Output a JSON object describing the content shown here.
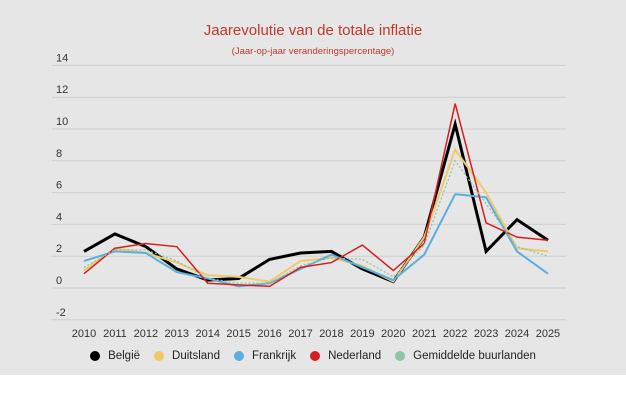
{
  "chart_data": {
    "type": "line",
    "title": "Jaarevolutie van de totale inflatie",
    "subtitle": "(Jaar-op-jaar veranderingspercentage)",
    "xlabel": "",
    "ylabel": "",
    "x": [
      2010,
      2011,
      2012,
      2013,
      2014,
      2015,
      2016,
      2017,
      2018,
      2019,
      2020,
      2021,
      2022,
      2023,
      2024,
      2025
    ],
    "ylim": [
      -2,
      14
    ],
    "yticks": [
      -2,
      0,
      2,
      4,
      6,
      8,
      10,
      12,
      14
    ],
    "grid": true,
    "legend_placement": "bottom",
    "series": [
      {
        "name": "België",
        "color": "#000000",
        "dashed": false,
        "values": [
          2.3,
          3.4,
          2.6,
          1.2,
          0.5,
          0.6,
          1.8,
          2.2,
          2.3,
          1.2,
          0.4,
          3.2,
          10.3,
          2.3,
          4.3,
          3.0
        ]
      },
      {
        "name": "Duitsland",
        "color": "#f0c96a",
        "dashed": false,
        "values": [
          1.1,
          2.5,
          2.2,
          1.6,
          0.8,
          0.7,
          0.4,
          1.7,
          1.9,
          1.4,
          0.4,
          3.2,
          8.7,
          6.0,
          2.5,
          2.3
        ]
      },
      {
        "name": "Frankrijk",
        "color": "#5aaee0",
        "dashed": false,
        "values": [
          1.7,
          2.3,
          2.2,
          1.0,
          0.6,
          0.1,
          0.3,
          1.2,
          2.1,
          1.3,
          0.5,
          2.1,
          5.9,
          5.7,
          2.3,
          0.9
        ]
      },
      {
        "name": "Nederland",
        "color": "#d42020",
        "dashed": false,
        "values": [
          0.9,
          2.5,
          2.8,
          2.6,
          0.3,
          0.2,
          0.1,
          1.3,
          1.6,
          2.7,
          1.1,
          2.8,
          11.6,
          4.1,
          3.2,
          3.0
        ]
      },
      {
        "name": "Gemiddelde buurlanden",
        "color": "#8cc4a4",
        "dashed": true,
        "values": [
          1.3,
          2.4,
          2.4,
          1.7,
          0.6,
          0.3,
          0.3,
          1.4,
          1.9,
          1.8,
          0.7,
          2.7,
          8.0,
          5.3,
          2.6,
          2.0
        ]
      }
    ]
  }
}
